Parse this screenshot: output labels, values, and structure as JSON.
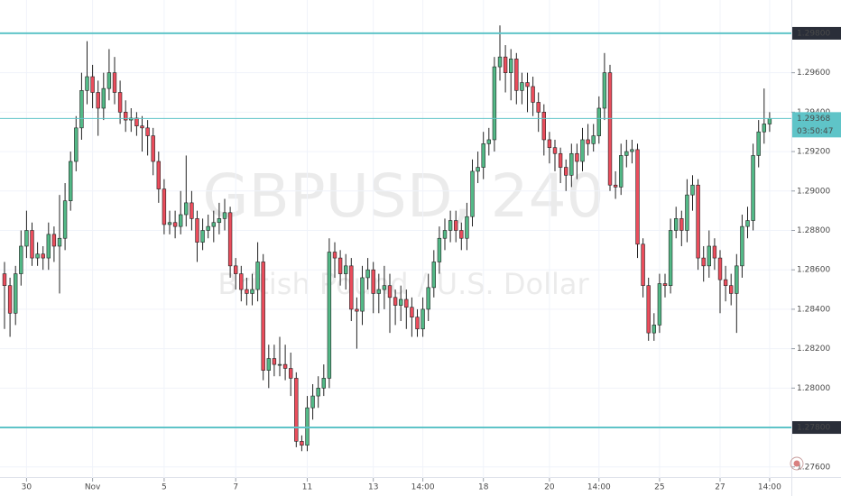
{
  "chart_data": {
    "type": "candlestick",
    "title": "GBPUSD, 240",
    "subtitle": "British Pound / U.S. Dollar",
    "up_color": "#53b987",
    "down_color": "#eb4d5c",
    "wick_color": "#222222",
    "open": [
      1.2858,
      1.2852,
      1.2838,
      1.2858,
      1.2872,
      1.288,
      1.2866,
      1.2868,
      1.2866,
      1.2878,
      1.2872,
      1.2876,
      1.2895,
      1.2915,
      1.2932,
      1.2951,
      1.2958,
      1.295,
      1.2942,
      1.2952,
      1.296,
      1.295,
      1.294,
      1.2936,
      1.2937,
      1.2933,
      1.2932,
      1.2928,
      1.2915,
      1.2901,
      1.2883,
      1.2884,
      1.2882,
      1.2888,
      1.2894,
      1.2886,
      1.2874,
      1.288,
      1.2882,
      1.2884,
      1.2886,
      1.2889,
      1.2862,
      1.2858,
      1.285,
      1.2848,
      1.285,
      1.2864,
      1.2809,
      1.2815,
      1.2812,
      1.2812,
      1.281,
      1.2805,
      1.2773,
      1.2771,
      1.279,
      1.2796,
      1.28,
      1.2805,
      1.2869,
      1.2866,
      1.2858,
      1.2862,
      1.284,
      1.2839,
      1.2856,
      1.286,
      1.2848,
      1.285,
      1.2852,
      1.2846,
      1.2842,
      1.2845,
      1.2841,
      1.2836,
      1.283,
      1.284,
      1.2851,
      1.2864,
      1.2876,
      1.288,
      1.2885,
      1.288,
      1.2876,
      1.2887,
      1.291,
      1.2912,
      1.2924,
      1.2926,
      1.2963,
      1.2968,
      1.296,
      1.2967,
      1.2951,
      1.2955,
      1.2953,
      1.2945,
      1.294,
      1.2926,
      1.2922,
      1.2919,
      1.2912,
      1.2908,
      1.2919,
      1.2915,
      1.2926,
      1.2924,
      1.2928,
      1.2942,
      1.296,
      1.2903,
      1.2902,
      1.2918,
      1.292,
      1.2921,
      1.2873,
      1.2852,
      1.2828,
      1.2832,
      1.2853,
      1.2852,
      1.288,
      1.2886,
      1.288,
      1.2898,
      1.2903,
      1.2866,
      1.2862,
      1.2872,
      1.2866,
      1.2855,
      1.2852,
      1.2848,
      1.2862,
      1.2882,
      1.2885,
      1.2918,
      1.293,
      1.2934
    ],
    "high": [
      1.2864,
      1.2856,
      1.2862,
      1.288,
      1.289,
      1.2884,
      1.2874,
      1.2872,
      1.2884,
      1.2882,
      1.2898,
      1.2904,
      1.292,
      1.2938,
      1.296,
      1.2976,
      1.2964,
      1.2956,
      1.296,
      1.2972,
      1.2968,
      1.2956,
      1.2946,
      1.2942,
      1.294,
      1.2938,
      1.2936,
      1.2932,
      1.292,
      1.2906,
      1.289,
      1.289,
      1.29,
      1.2918,
      1.29,
      1.289,
      1.2886,
      1.2888,
      1.289,
      1.2894,
      1.2896,
      1.2892,
      1.2866,
      1.2862,
      1.2856,
      1.2858,
      1.2874,
      1.2868,
      1.2822,
      1.2822,
      1.2826,
      1.2822,
      1.2818,
      1.2808,
      1.2776,
      1.2796,
      1.2802,
      1.2806,
      1.2812,
      1.2876,
      1.2874,
      1.287,
      1.2868,
      1.2866,
      1.2846,
      1.2862,
      1.2866,
      1.2864,
      1.2858,
      1.2862,
      1.2858,
      1.285,
      1.2852,
      1.285,
      1.2846,
      1.284,
      1.2846,
      1.2858,
      1.287,
      1.2882,
      1.2886,
      1.289,
      1.289,
      1.2884,
      1.2894,
      1.2916,
      1.292,
      1.293,
      1.2932,
      1.2968,
      1.2984,
      1.2974,
      1.2972,
      1.297,
      1.296,
      1.296,
      1.2958,
      1.295,
      1.2944,
      1.293,
      1.2926,
      1.2922,
      1.2916,
      1.2924,
      1.2924,
      1.2932,
      1.2934,
      1.2934,
      1.2948,
      1.297,
      1.2964,
      1.291,
      1.2924,
      1.2926,
      1.2926,
      1.2924,
      1.2876,
      1.2856,
      1.2838,
      1.2858,
      1.2858,
      1.2886,
      1.2892,
      1.289,
      1.2906,
      1.2908,
      1.2906,
      1.2872,
      1.288,
      1.2876,
      1.287,
      1.2862,
      1.2858,
      1.2868,
      1.2888,
      1.2892,
      1.2924,
      1.2936,
      1.2952,
      1.294
    ],
    "low": [
      1.283,
      1.2826,
      1.2832,
      1.2852,
      1.2866,
      1.2862,
      1.2862,
      1.286,
      1.286,
      1.2864,
      1.2848,
      1.287,
      1.289,
      1.291,
      1.2926,
      1.2944,
      1.2942,
      1.2928,
      1.2936,
      1.2946,
      1.2944,
      1.2934,
      1.293,
      1.293,
      1.2928,
      1.292,
      1.2918,
      1.2908,
      1.2894,
      1.2878,
      1.2878,
      1.2876,
      1.2878,
      1.2882,
      1.288,
      1.2864,
      1.287,
      1.2876,
      1.2874,
      1.2878,
      1.288,
      1.2856,
      1.285,
      1.2844,
      1.2842,
      1.2842,
      1.2844,
      1.2804,
      1.28,
      1.2806,
      1.2806,
      1.2804,
      1.2796,
      1.277,
      1.2768,
      1.2768,
      1.2784,
      1.279,
      1.2796,
      1.28,
      1.2856,
      1.2852,
      1.285,
      1.2834,
      1.282,
      1.2832,
      1.285,
      1.2838,
      1.2838,
      1.284,
      1.2828,
      1.2832,
      1.2834,
      1.283,
      1.2826,
      1.2826,
      1.2826,
      1.2834,
      1.2846,
      1.2858,
      1.287,
      1.2874,
      1.2874,
      1.287,
      1.287,
      1.2882,
      1.2904,
      1.2906,
      1.2918,
      1.292,
      1.2956,
      1.295,
      1.2946,
      1.2944,
      1.2944,
      1.294,
      1.2938,
      1.293,
      1.2918,
      1.2914,
      1.291,
      1.2904,
      1.29,
      1.2902,
      1.2906,
      1.291,
      1.2918,
      1.292,
      1.2924,
      1.2936,
      1.29,
      1.2896,
      1.2898,
      1.2912,
      1.2914,
      1.2866,
      1.2846,
      1.2824,
      1.2824,
      1.2828,
      1.2846,
      1.2848,
      1.2876,
      1.2872,
      1.2874,
      1.289,
      1.286,
      1.2854,
      1.2856,
      1.286,
      1.2838,
      1.2844,
      1.2842,
      1.2828,
      1.2856,
      1.2876,
      1.288,
      1.2912,
      1.2924,
      1.293
    ],
    "close": [
      1.2852,
      1.2838,
      1.2858,
      1.2872,
      1.288,
      1.2866,
      1.2868,
      1.2866,
      1.2878,
      1.2872,
      1.2876,
      1.2895,
      1.2915,
      1.2932,
      1.2951,
      1.2958,
      1.295,
      1.2942,
      1.2952,
      1.296,
      1.295,
      1.294,
      1.2936,
      1.2937,
      1.2933,
      1.2932,
      1.2928,
      1.2915,
      1.2901,
      1.2883,
      1.2884,
      1.2882,
      1.2888,
      1.2894,
      1.2886,
      1.2874,
      1.288,
      1.2882,
      1.2884,
      1.2886,
      1.2889,
      1.2862,
      1.2858,
      1.285,
      1.2848,
      1.285,
      1.2864,
      1.2809,
      1.2815,
      1.2812,
      1.2812,
      1.281,
      1.2805,
      1.2773,
      1.2771,
      1.279,
      1.2796,
      1.28,
      1.2805,
      1.2869,
      1.2866,
      1.2858,
      1.2862,
      1.284,
      1.2839,
      1.2856,
      1.286,
      1.2848,
      1.285,
      1.2852,
      1.2846,
      1.2842,
      1.2845,
      1.2841,
      1.2836,
      1.283,
      1.284,
      1.2851,
      1.2864,
      1.2876,
      1.288,
      1.2885,
      1.288,
      1.2876,
      1.2887,
      1.291,
      1.2912,
      1.2924,
      1.2926,
      1.2963,
      1.2968,
      1.296,
      1.2967,
      1.2951,
      1.2955,
      1.2953,
      1.2945,
      1.294,
      1.2926,
      1.2922,
      1.2919,
      1.2912,
      1.2908,
      1.2919,
      1.2915,
      1.2926,
      1.2924,
      1.2928,
      1.2942,
      1.296,
      1.2903,
      1.2902,
      1.2918,
      1.292,
      1.2921,
      1.2873,
      1.2852,
      1.2828,
      1.2832,
      1.2853,
      1.2852,
      1.288,
      1.2886,
      1.288,
      1.2898,
      1.2903,
      1.2866,
      1.2862,
      1.2872,
      1.2866,
      1.2855,
      1.2852,
      1.2848,
      1.2862,
      1.2882,
      1.2885,
      1.2918,
      1.293,
      1.2934,
      1.29368
    ],
    "xlim": [
      -0.82,
      142.95
    ],
    "xticks": [
      {
        "value": 4,
        "label": "30"
      },
      {
        "value": 16,
        "label": "Nov"
      },
      {
        "value": 29,
        "label": "5"
      },
      {
        "value": 42,
        "label": "7"
      },
      {
        "value": 55,
        "label": "11"
      },
      {
        "value": 67,
        "label": "13"
      },
      {
        "value": 76,
        "label": "14:00"
      },
      {
        "value": 87,
        "label": "18"
      },
      {
        "value": 99,
        "label": "20"
      },
      {
        "value": 108,
        "label": "14:00"
      },
      {
        "value": 119,
        "label": "25"
      },
      {
        "value": 130,
        "label": "27"
      },
      {
        "value": 139,
        "label": "14:00"
      }
    ],
    "ylim": [
      1.27544,
      1.29969
    ],
    "yticks": [
      {
        "value": 1.276,
        "label": "1.27600"
      },
      {
        "value": 1.28,
        "label": "1.28000"
      },
      {
        "value": 1.282,
        "label": "1.28200"
      },
      {
        "value": 1.284,
        "label": "1.28400"
      },
      {
        "value": 1.286,
        "label": "1.28600"
      },
      {
        "value": 1.288,
        "label": "1.28800"
      },
      {
        "value": 1.29,
        "label": "1.29000"
      },
      {
        "value": 1.292,
        "label": "1.29200"
      },
      {
        "value": 1.294,
        "label": "1.29400"
      },
      {
        "value": 1.296,
        "label": "1.29600"
      }
    ],
    "hlines": [
      {
        "value": 1.298,
        "label": "1.29800"
      },
      {
        "value": 1.278,
        "label": "1.27800"
      }
    ],
    "hline_color": "#5fc4c8",
    "last_price": {
      "value": 1.29368,
      "label": "1.29368"
    },
    "countdown": "03:50:47"
  }
}
